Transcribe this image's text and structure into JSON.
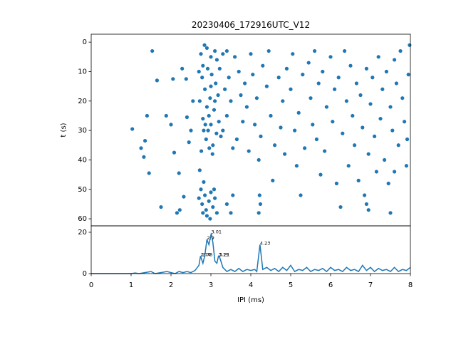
{
  "chart_data": [
    {
      "type": "scatter",
      "title": "20230406_172916UTC_V12",
      "ylabel": "t (s)",
      "color": "#1f77b4",
      "xlim": [
        0,
        8
      ],
      "ylim": [
        62.4,
        -2.7
      ],
      "yticks": [
        0,
        10,
        20,
        30,
        40,
        50,
        60
      ],
      "points": [
        [
          1.03,
          29.5
        ],
        [
          1.25,
          36
        ],
        [
          1.32,
          39
        ],
        [
          1.35,
          33.5
        ],
        [
          1.4,
          25
        ],
        [
          1.45,
          44.5
        ],
        [
          1.53,
          3
        ],
        [
          1.65,
          13
        ],
        [
          1.75,
          56
        ],
        [
          1.88,
          25
        ],
        [
          2.0,
          28
        ],
        [
          2.05,
          12.5
        ],
        [
          2.08,
          37.5
        ],
        [
          2.15,
          58
        ],
        [
          2.22,
          57
        ],
        [
          2.28,
          9
        ],
        [
          2.32,
          52.5
        ],
        [
          2.38,
          12.5
        ],
        [
          2.4,
          25.5
        ],
        [
          2.5,
          30
        ],
        [
          2.55,
          20
        ],
        [
          2.2,
          44.5
        ],
        [
          2.45,
          34
        ],
        [
          2.75,
          4
        ],
        [
          2.8,
          8
        ],
        [
          2.78,
          12
        ],
        [
          2.85,
          16
        ],
        [
          2.72,
          20
        ],
        [
          2.9,
          22
        ],
        [
          2.95,
          25
        ],
        [
          3.0,
          28
        ],
        [
          2.82,
          30
        ],
        [
          2.88,
          33
        ],
        [
          3.05,
          35
        ],
        [
          2.76,
          37
        ],
        [
          3.1,
          3
        ],
        [
          3.15,
          6
        ],
        [
          2.92,
          9
        ],
        [
          3.02,
          11
        ],
        [
          3.12,
          14
        ],
        [
          3.18,
          18
        ],
        [
          2.98,
          19
        ],
        [
          3.08,
          23
        ],
        [
          3.2,
          27
        ],
        [
          2.86,
          28
        ],
        [
          3.14,
          31
        ],
        [
          2.96,
          36
        ],
        [
          3.04,
          38
        ],
        [
          2.8,
          26
        ],
        [
          3.0,
          5
        ],
        [
          2.9,
          2
        ],
        [
          3.22,
          9
        ],
        [
          3.1,
          20
        ],
        [
          2.84,
          1
        ],
        [
          3.0,
          15
        ],
        [
          2.7,
          10
        ],
        [
          3.25,
          32
        ],
        [
          2.93,
          30
        ],
        [
          2.75,
          50
        ],
        [
          2.85,
          52
        ],
        [
          2.95,
          54
        ],
        [
          3.05,
          56
        ],
        [
          2.8,
          58
        ],
        [
          2.9,
          59
        ],
        [
          3.0,
          51
        ],
        [
          3.1,
          53
        ],
        [
          2.78,
          55
        ],
        [
          2.88,
          57
        ],
        [
          2.98,
          60
        ],
        [
          3.15,
          58
        ],
        [
          2.7,
          53
        ],
        [
          2.82,
          47.5
        ],
        [
          3.08,
          50
        ],
        [
          2.72,
          43.5
        ],
        [
          3.3,
          4
        ],
        [
          3.4,
          3
        ],
        [
          3.35,
          16
        ],
        [
          3.45,
          12
        ],
        [
          3.5,
          20
        ],
        [
          3.4,
          25
        ],
        [
          3.3,
          30
        ],
        [
          3.55,
          36
        ],
        [
          3.6,
          5
        ],
        [
          3.7,
          10
        ],
        [
          3.75,
          18
        ],
        [
          3.8,
          27
        ],
        [
          3.65,
          33
        ],
        [
          3.85,
          14
        ],
        [
          3.9,
          22
        ],
        [
          3.95,
          37
        ],
        [
          3.4,
          55
        ],
        [
          3.55,
          52
        ],
        [
          3.5,
          58
        ],
        [
          4.0,
          4
        ],
        [
          4.05,
          11
        ],
        [
          4.1,
          28
        ],
        [
          4.15,
          19
        ],
        [
          4.2,
          40
        ],
        [
          4.22,
          52
        ],
        [
          4.24,
          55
        ],
        [
          4.2,
          58
        ],
        [
          4.25,
          32
        ],
        [
          4.3,
          8
        ],
        [
          4.4,
          15
        ],
        [
          4.5,
          25
        ],
        [
          4.45,
          3
        ],
        [
          4.6,
          35
        ],
        [
          4.7,
          12
        ],
        [
          4.75,
          29
        ],
        [
          4.55,
          47
        ],
        [
          4.8,
          20
        ],
        [
          4.9,
          9
        ],
        [
          4.85,
          38
        ],
        [
          5.0,
          16
        ],
        [
          5.1,
          30
        ],
        [
          5.05,
          4
        ],
        [
          5.2,
          24
        ],
        [
          5.15,
          42
        ],
        [
          5.3,
          11
        ],
        [
          5.35,
          36
        ],
        [
          5.25,
          52
        ],
        [
          5.45,
          7
        ],
        [
          5.5,
          19
        ],
        [
          5.55,
          28
        ],
        [
          5.6,
          3
        ],
        [
          5.7,
          14
        ],
        [
          5.65,
          33
        ],
        [
          5.75,
          45
        ],
        [
          5.8,
          10
        ],
        [
          5.9,
          22
        ],
        [
          5.85,
          37
        ],
        [
          6.0,
          5
        ],
        [
          6.05,
          27
        ],
        [
          6.1,
          16
        ],
        [
          6.15,
          48
        ],
        [
          6.2,
          12
        ],
        [
          6.3,
          31
        ],
        [
          6.25,
          56
        ],
        [
          6.35,
          3
        ],
        [
          6.4,
          20
        ],
        [
          6.45,
          42
        ],
        [
          6.5,
          8
        ],
        [
          6.55,
          25
        ],
        [
          6.6,
          35
        ],
        [
          6.65,
          14
        ],
        [
          6.7,
          47
        ],
        [
          6.75,
          18
        ],
        [
          6.8,
          29
        ],
        [
          6.85,
          52
        ],
        [
          6.9,
          9
        ],
        [
          6.95,
          38
        ],
        [
          7.0,
          21
        ],
        [
          7.05,
          12
        ],
        [
          7.1,
          32
        ],
        [
          7.15,
          44
        ],
        [
          7.2,
          5
        ],
        [
          7.25,
          26
        ],
        [
          7.3,
          16
        ],
        [
          7.35,
          40
        ],
        [
          7.4,
          10
        ],
        [
          7.45,
          48
        ],
        [
          7.5,
          22
        ],
        [
          7.55,
          30
        ],
        [
          7.6,
          44
        ],
        [
          7.65,
          14
        ],
        [
          7.7,
          35
        ],
        [
          7.75,
          3
        ],
        [
          7.8,
          19
        ],
        [
          7.85,
          27
        ],
        [
          7.9,
          42
        ],
        [
          7.95,
          11
        ],
        [
          7.98,
          1
        ],
        [
          7.92,
          33
        ],
        [
          7.5,
          58
        ],
        [
          6.9,
          55
        ],
        [
          6.95,
          57
        ],
        [
          7.6,
          6
        ]
      ]
    },
    {
      "type": "line",
      "xlabel": "IPI (ms)",
      "color": "#1f77b4",
      "xlim": [
        0,
        8
      ],
      "xticks": [
        0,
        1,
        2,
        3,
        4,
        5,
        6,
        7,
        8
      ],
      "ylim": [
        0,
        23.1
      ],
      "yticks": [
        0,
        20
      ],
      "x": [
        0,
        0.5,
        1.0,
        1.1,
        1.2,
        1.5,
        1.6,
        1.9,
        2.0,
        2.1,
        2.2,
        2.3,
        2.4,
        2.5,
        2.6,
        2.7,
        2.74,
        2.8,
        2.85,
        2.9,
        2.95,
        3.01,
        3.05,
        3.1,
        3.15,
        3.19,
        3.21,
        3.3,
        3.4,
        3.5,
        3.6,
        3.7,
        3.8,
        3.9,
        4.0,
        4.1,
        4.15,
        4.23,
        4.3,
        4.4,
        4.5,
        4.6,
        4.7,
        4.8,
        4.9,
        5.0,
        5.1,
        5.2,
        5.3,
        5.4,
        5.5,
        5.6,
        5.7,
        5.8,
        5.9,
        6.0,
        6.1,
        6.2,
        6.3,
        6.4,
        6.5,
        6.6,
        6.7,
        6.8,
        6.9,
        7.0,
        7.1,
        7.2,
        7.3,
        7.4,
        7.5,
        7.6,
        7.7,
        7.8,
        7.9,
        8.0
      ],
      "values": [
        0,
        0,
        0,
        0.3,
        0,
        1,
        0,
        1,
        0.5,
        0,
        1,
        0.5,
        1,
        0.5,
        1.5,
        4,
        8.5,
        5,
        9,
        16.5,
        14,
        19.5,
        15,
        6,
        5,
        8.5,
        8.5,
        3,
        1,
        2,
        1,
        2.5,
        1,
        2,
        1.5,
        2,
        1,
        14,
        2,
        3,
        1.5,
        2.5,
        1,
        3,
        1.5,
        4,
        1,
        2,
        1.5,
        3,
        1,
        2,
        1.5,
        2.5,
        1,
        3,
        1.5,
        2,
        1,
        3,
        1.5,
        2,
        1,
        4,
        1.5,
        3,
        1,
        2.5,
        1.5,
        2,
        1,
        3,
        1,
        2,
        1.5,
        3
      ],
      "annotations": [
        {
          "text": "2.74",
          "x": 2.74,
          "y": 8.5
        },
        {
          "text": "2.78",
          "x": 2.78,
          "y": 8.5
        },
        {
          "text": "2.9",
          "x": 2.9,
          "y": 16.5
        },
        {
          "text": "3.01",
          "x": 3.01,
          "y": 19.5
        },
        {
          "text": "3.19",
          "x": 3.19,
          "y": 8.5
        },
        {
          "text": "3.21",
          "x": 3.21,
          "y": 8.5
        },
        {
          "text": "4.23",
          "x": 4.23,
          "y": 14
        }
      ]
    }
  ]
}
